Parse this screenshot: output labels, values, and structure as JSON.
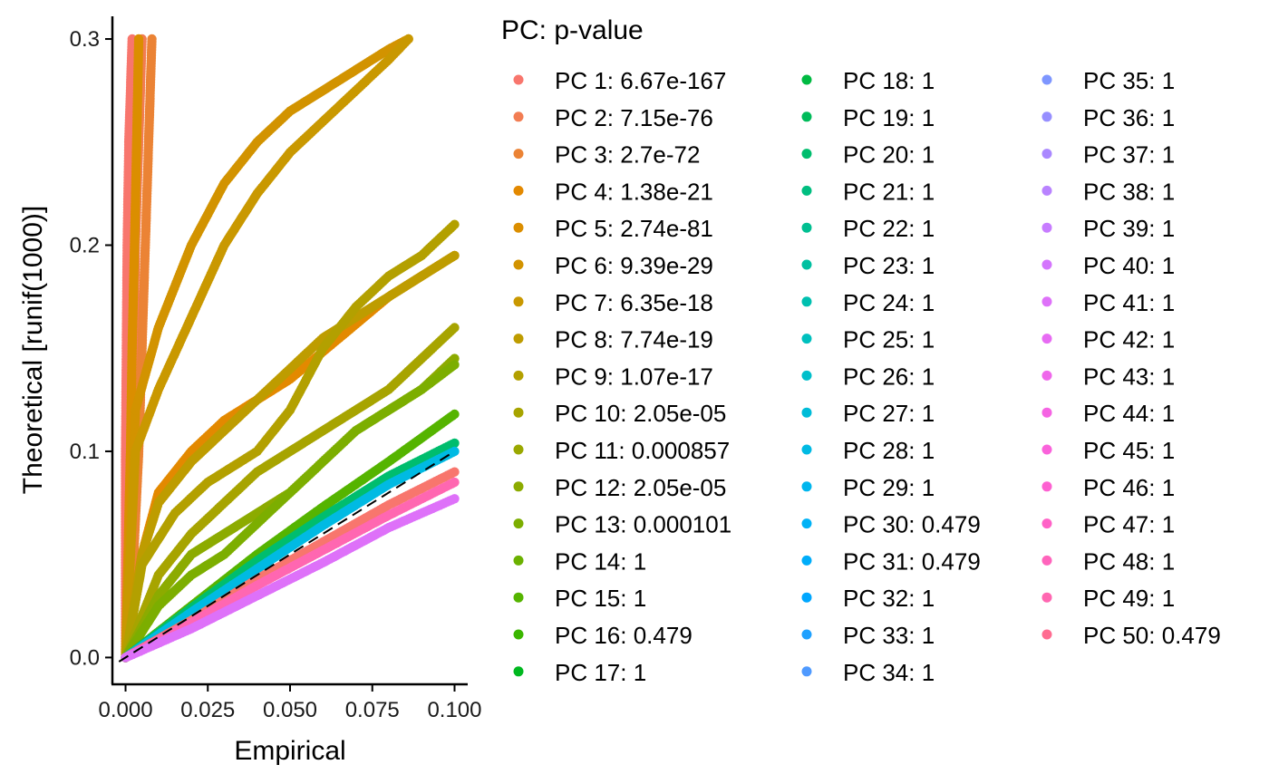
{
  "chart_data": {
    "type": "scatter",
    "xlabel": "Empirical",
    "ylabel": "Theoretical [runif(1000)]",
    "xlim": [
      -0.004,
      0.104
    ],
    "ylim": [
      -0.013,
      0.311
    ],
    "x_ticks": [
      0.0,
      0.025,
      0.05,
      0.075,
      0.1
    ],
    "x_tick_labels": [
      "0.000",
      "0.025",
      "0.050",
      "0.075",
      "0.100"
    ],
    "y_ticks": [
      0.0,
      0.1,
      0.2,
      0.3
    ],
    "y_tick_labels": [
      "0.0",
      "0.1",
      "0.2",
      "0.3"
    ],
    "grid": false,
    "reference_line": {
      "style": "dashed",
      "slope": 1,
      "intercept": 0,
      "color": "#000000"
    },
    "legend": {
      "title": "PC: p-value",
      "placement": "right",
      "columns": 3,
      "entries": [
        {
          "label": "PC 1: 6.67e-167",
          "color": "#F8766D"
        },
        {
          "label": "PC 2: 7.15e-76",
          "color": "#F27D53"
        },
        {
          "label": "PC 3: 2.7e-72",
          "color": "#EB8335"
        },
        {
          "label": "PC 4: 1.38e-21",
          "color": "#E38900"
        },
        {
          "label": "PC 5: 2.74e-81",
          "color": "#DB8E00"
        },
        {
          "label": "PC 6: 9.39e-29",
          "color": "#D29300"
        },
        {
          "label": "PC 7: 6.35e-18",
          "color": "#C99800"
        },
        {
          "label": "PC 8: 7.74e-19",
          "color": "#BE9C00"
        },
        {
          "label": "PC 9: 1.07e-17",
          "color": "#B3A000"
        },
        {
          "label": "PC 10: 2.05e-05",
          "color": "#A7A400"
        },
        {
          "label": "PC 11: 0.000857",
          "color": "#9AA800"
        },
        {
          "label": "PC 12: 2.05e-05",
          "color": "#8CAB00"
        },
        {
          "label": "PC 13: 0.000101",
          "color": "#7CAE00"
        },
        {
          "label": "PC 14: 1",
          "color": "#6BB100"
        },
        {
          "label": "PC 15: 1",
          "color": "#55B400"
        },
        {
          "label": "PC 16: 0.479",
          "color": "#3AB600"
        },
        {
          "label": "PC 17: 1",
          "color": "#00B81F"
        },
        {
          "label": "PC 18: 1",
          "color": "#00BA42"
        },
        {
          "label": "PC 19: 1",
          "color": "#00BB5A"
        },
        {
          "label": "PC 20: 1",
          "color": "#00BD6E"
        },
        {
          "label": "PC 21: 1",
          "color": "#00BE80"
        },
        {
          "label": "PC 22: 1",
          "color": "#00BF91"
        },
        {
          "label": "PC 23: 1",
          "color": "#00C0A1"
        },
        {
          "label": "PC 24: 1",
          "color": "#00C0B0"
        },
        {
          "label": "PC 25: 1",
          "color": "#00C0BE"
        },
        {
          "label": "PC 26: 1",
          "color": "#00BFCB"
        },
        {
          "label": "PC 27: 1",
          "color": "#00BCD8"
        },
        {
          "label": "PC 28: 1",
          "color": "#00BAE3"
        },
        {
          "label": "PC 29: 1",
          "color": "#00B6EE"
        },
        {
          "label": "PC 30: 0.479",
          "color": "#00B2F6"
        },
        {
          "label": "PC 31: 0.479",
          "color": "#00ADFA"
        },
        {
          "label": "PC 32: 1",
          "color": "#00A7FF"
        },
        {
          "label": "PC 33: 1",
          "color": "#1FA1FF"
        },
        {
          "label": "PC 34: 1",
          "color": "#4F9AFF"
        },
        {
          "label": "PC 35: 1",
          "color": "#7E96FF"
        },
        {
          "label": "PC 36: 1",
          "color": "#978FFF"
        },
        {
          "label": "PC 37: 1",
          "color": "#AA88FF"
        },
        {
          "label": "PC 38: 1",
          "color": "#B983FF"
        },
        {
          "label": "PC 39: 1",
          "color": "#C77CFF"
        },
        {
          "label": "PC 40: 1",
          "color": "#D475FD"
        },
        {
          "label": "PC 41: 1",
          "color": "#DE71F9"
        },
        {
          "label": "PC 42: 1",
          "color": "#E76BF3"
        },
        {
          "label": "PC 43: 1",
          "color": "#EF67EB"
        },
        {
          "label": "PC 44: 1",
          "color": "#F564E3"
        },
        {
          "label": "PC 45: 1",
          "color": "#FA62DB"
        },
        {
          "label": "PC 46: 1",
          "color": "#FD61D1"
        },
        {
          "label": "PC 47: 1",
          "color": "#FF62C7"
        },
        {
          "label": "PC 48: 1",
          "color": "#FF64BC"
        },
        {
          "label": "PC 49: 1",
          "color": "#FF67B1"
        },
        {
          "label": "PC 50: 0.479",
          "color": "#FF6C91"
        }
      ]
    },
    "series": [
      {
        "color": "#F8766D",
        "points": [
          [
            0.0,
            0.0
          ],
          [
            0.0,
            0.1
          ],
          [
            0.0005,
            0.2
          ],
          [
            0.001,
            0.25
          ],
          [
            0.002,
            0.3
          ]
        ]
      },
      {
        "color": "#F27D53",
        "points": [
          [
            0.0,
            0.0
          ],
          [
            0.0015,
            0.05
          ],
          [
            0.002,
            0.1
          ],
          [
            0.003,
            0.2
          ],
          [
            0.005,
            0.3
          ]
        ]
      },
      {
        "color": "#EB8335",
        "points": [
          [
            0.0,
            0.0
          ],
          [
            0.0025,
            0.05
          ],
          [
            0.004,
            0.1
          ],
          [
            0.006,
            0.2
          ],
          [
            0.008,
            0.3
          ]
        ]
      },
      {
        "color": "#E38900",
        "points": [
          [
            0.0,
            0.0
          ],
          [
            0.005,
            0.05
          ],
          [
            0.01,
            0.08
          ],
          [
            0.02,
            0.1
          ],
          [
            0.03,
            0.115
          ],
          [
            0.05,
            0.135
          ],
          [
            0.065,
            0.155
          ],
          [
            0.08,
            0.175
          ],
          [
            0.1,
            0.195
          ]
        ]
      },
      {
        "color": "#DB8E00",
        "points": [
          [
            0.0,
            0.0
          ],
          [
            0.0015,
            0.1
          ],
          [
            0.002,
            0.15
          ],
          [
            0.003,
            0.22
          ],
          [
            0.004,
            0.3
          ]
        ]
      },
      {
        "color": "#D29300",
        "points": [
          [
            0.0,
            0.0
          ],
          [
            0.003,
            0.12
          ],
          [
            0.01,
            0.16
          ],
          [
            0.02,
            0.2
          ],
          [
            0.03,
            0.23
          ],
          [
            0.04,
            0.25
          ],
          [
            0.05,
            0.265
          ],
          [
            0.06,
            0.275
          ],
          [
            0.07,
            0.285
          ],
          [
            0.08,
            0.295
          ],
          [
            0.086,
            0.3
          ]
        ]
      },
      {
        "color": "#C99800",
        "points": [
          [
            0.0,
            0.0
          ],
          [
            0.003,
            0.1
          ],
          [
            0.01,
            0.13
          ],
          [
            0.02,
            0.165
          ],
          [
            0.03,
            0.2
          ],
          [
            0.04,
            0.225
          ],
          [
            0.05,
            0.245
          ],
          [
            0.06,
            0.26
          ],
          [
            0.07,
            0.275
          ],
          [
            0.08,
            0.29
          ],
          [
            0.086,
            0.3
          ]
        ]
      },
      {
        "color": "#BE9C00",
        "points": [
          [
            0.0,
            0.0
          ],
          [
            0.005,
            0.05
          ],
          [
            0.01,
            0.075
          ],
          [
            0.02,
            0.095
          ],
          [
            0.03,
            0.11
          ],
          [
            0.04,
            0.125
          ],
          [
            0.05,
            0.14
          ],
          [
            0.06,
            0.155
          ],
          [
            0.07,
            0.165
          ],
          [
            0.08,
            0.175
          ],
          [
            0.09,
            0.185
          ],
          [
            0.1,
            0.195
          ]
        ]
      },
      {
        "color": "#B3A000",
        "points": [
          [
            0.0,
            0.0
          ],
          [
            0.005,
            0.045
          ],
          [
            0.015,
            0.07
          ],
          [
            0.025,
            0.085
          ],
          [
            0.04,
            0.1
          ],
          [
            0.05,
            0.12
          ],
          [
            0.06,
            0.15
          ],
          [
            0.07,
            0.17
          ],
          [
            0.08,
            0.185
          ],
          [
            0.09,
            0.195
          ],
          [
            0.1,
            0.21
          ]
        ]
      },
      {
        "color": "#A7A400",
        "points": [
          [
            0.0,
            0.0
          ],
          [
            0.01,
            0.04
          ],
          [
            0.02,
            0.06
          ],
          [
            0.03,
            0.075
          ],
          [
            0.04,
            0.09
          ],
          [
            0.05,
            0.1
          ],
          [
            0.06,
            0.11
          ],
          [
            0.07,
            0.12
          ],
          [
            0.08,
            0.13
          ],
          [
            0.09,
            0.145
          ],
          [
            0.1,
            0.16
          ]
        ]
      },
      {
        "color": "#8CAB00",
        "points": [
          [
            0.0,
            0.0
          ],
          [
            0.01,
            0.03
          ],
          [
            0.02,
            0.05
          ],
          [
            0.03,
            0.06
          ],
          [
            0.04,
            0.07
          ],
          [
            0.05,
            0.08
          ],
          [
            0.06,
            0.095
          ],
          [
            0.07,
            0.11
          ],
          [
            0.08,
            0.12
          ],
          [
            0.09,
            0.13
          ],
          [
            0.1,
            0.145
          ]
        ]
      },
      {
        "color": "#7CAE00",
        "points": [
          [
            0.0,
            0.0
          ],
          [
            0.01,
            0.025
          ],
          [
            0.02,
            0.04
          ],
          [
            0.03,
            0.05
          ],
          [
            0.04,
            0.065
          ],
          [
            0.05,
            0.08
          ],
          [
            0.06,
            0.095
          ],
          [
            0.07,
            0.11
          ],
          [
            0.08,
            0.12
          ],
          [
            0.09,
            0.13
          ],
          [
            0.1,
            0.142
          ]
        ]
      },
      {
        "color": "#55B400",
        "points": [
          [
            0.0,
            0.0
          ],
          [
            0.02,
            0.025
          ],
          [
            0.04,
            0.05
          ],
          [
            0.06,
            0.073
          ],
          [
            0.08,
            0.095
          ],
          [
            0.1,
            0.118
          ]
        ]
      },
      {
        "color": "#00BD6E",
        "points": [
          [
            0.0,
            0.0
          ],
          [
            0.02,
            0.024
          ],
          [
            0.04,
            0.047
          ],
          [
            0.06,
            0.068
          ],
          [
            0.08,
            0.088
          ],
          [
            0.1,
            0.104
          ]
        ]
      },
      {
        "color": "#00BAE3",
        "points": [
          [
            0.0,
            0.0
          ],
          [
            0.02,
            0.022
          ],
          [
            0.04,
            0.043
          ],
          [
            0.06,
            0.064
          ],
          [
            0.08,
            0.084
          ],
          [
            0.1,
            0.1
          ]
        ]
      },
      {
        "color": "#F8766D",
        "points": [
          [
            0.0,
            0.0
          ],
          [
            0.02,
            0.018
          ],
          [
            0.04,
            0.038
          ],
          [
            0.06,
            0.056
          ],
          [
            0.08,
            0.074
          ],
          [
            0.1,
            0.09
          ]
        ]
      },
      {
        "color": "#FF67B1",
        "points": [
          [
            0.0,
            0.0
          ],
          [
            0.02,
            0.017
          ],
          [
            0.04,
            0.035
          ],
          [
            0.06,
            0.052
          ],
          [
            0.08,
            0.069
          ],
          [
            0.1,
            0.085
          ]
        ]
      },
      {
        "color": "#DE71F9",
        "points": [
          [
            0.0,
            0.0
          ],
          [
            0.02,
            0.014
          ],
          [
            0.04,
            0.03
          ],
          [
            0.06,
            0.046
          ],
          [
            0.08,
            0.063
          ],
          [
            0.1,
            0.077
          ]
        ]
      }
    ]
  }
}
